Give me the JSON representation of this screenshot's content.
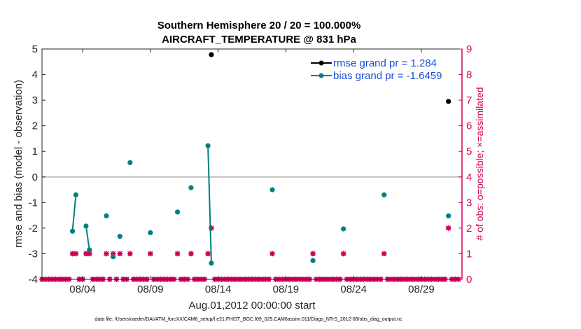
{
  "chart_data": {
    "type": "line",
    "title": "Southern Hemisphere 20 / 20 = 100.000%",
    "subtitle": "AIRCRAFT_TEMPERATURE @ 831 hPa",
    "xlabel": "Aug.01,2012 00:00:00 start",
    "ylabel": "rmse and bias (model - observation)",
    "y2label": "# of obs: o=possible; ×=assimilated",
    "xlim": [
      1,
      32
    ],
    "ylim": [
      -4,
      5
    ],
    "y2lim": [
      0,
      9
    ],
    "x_ticks": [
      4,
      9,
      14,
      19,
      24,
      29
    ],
    "x_tick_labels": [
      "08/04",
      "08/09",
      "08/14",
      "08/19",
      "08/24",
      "08/29"
    ],
    "y_ticks": [
      -4,
      -3,
      -2,
      -1,
      0,
      1,
      2,
      3,
      4,
      5
    ],
    "y_tick_labels": [
      "-4",
      "-3",
      "-2",
      "-1",
      "0",
      "1",
      "2",
      "3",
      "4",
      "5"
    ],
    "y2_ticks": [
      0,
      1,
      2,
      3,
      4,
      5,
      6,
      7,
      8,
      9
    ],
    "y2_tick_labels": [
      "0",
      "1",
      "2",
      "3",
      "4",
      "5",
      "6",
      "7",
      "8",
      "9"
    ],
    "zero_line": 0,
    "legend_position": "top-right",
    "colors": {
      "rmse": "#000000",
      "bias": "#008080",
      "obs": "#d6005c",
      "zero": "#bfbfbf"
    },
    "series": [
      {
        "name": "rmse grand pr = 1.284",
        "segments": [
          [
            [
              13.5,
              4.78
            ]
          ],
          [
            [
              31.0,
              2.95
            ]
          ]
        ]
      },
      {
        "name": "bias grand pr = -1.6459",
        "segments": [
          [
            [
              3.25,
              -2.12
            ],
            [
              3.5,
              -0.7
            ]
          ],
          [
            [
              4.25,
              -1.92
            ],
            [
              4.5,
              -2.85
            ]
          ],
          [
            [
              5.75,
              -1.52
            ]
          ],
          [
            [
              6.25,
              -3.12
            ]
          ],
          [
            [
              6.75,
              -2.32
            ]
          ],
          [
            [
              7.5,
              0.56
            ]
          ],
          [
            [
              9.0,
              -2.18
            ]
          ],
          [
            [
              11.0,
              -1.37
            ]
          ],
          [
            [
              12.0,
              -0.42
            ]
          ],
          [
            [
              13.25,
              1.22
            ],
            [
              13.5,
              -3.37
            ]
          ],
          [
            [
              18.0,
              -0.5
            ]
          ],
          [
            [
              21.0,
              -3.27
            ]
          ],
          [
            [
              23.25,
              -2.03
            ]
          ],
          [
            [
              26.25,
              -0.7
            ]
          ],
          [
            [
              31.0,
              -1.52
            ]
          ]
        ]
      }
    ],
    "obs_possible": {
      "x": [
        1.0,
        1.25,
        1.5,
        1.75,
        2.0,
        2.25,
        2.5,
        2.75,
        3.0,
        3.25,
        3.5,
        3.75,
        4.0,
        4.25,
        4.5,
        4.75,
        5.0,
        5.25,
        5.5,
        5.75,
        6.0,
        6.25,
        6.5,
        6.75,
        7.0,
        7.25,
        7.5,
        7.75,
        8.0,
        8.25,
        8.5,
        8.75,
        9.0,
        9.25,
        9.5,
        9.75,
        10.0,
        10.25,
        10.5,
        10.75,
        11.0,
        11.25,
        11.5,
        11.75,
        12.0,
        12.25,
        12.5,
        12.75,
        13.0,
        13.25,
        13.5,
        13.75,
        14.0,
        14.25,
        14.5,
        14.75,
        15.0,
        15.25,
        15.5,
        15.75,
        16.0,
        16.25,
        16.5,
        16.75,
        17.0,
        17.25,
        17.5,
        17.75,
        18.0,
        18.25,
        18.5,
        18.75,
        19.0,
        19.25,
        19.5,
        19.75,
        20.0,
        20.25,
        20.5,
        20.75,
        21.0,
        21.25,
        21.5,
        21.75,
        22.0,
        22.25,
        22.5,
        22.75,
        23.0,
        23.25,
        23.5,
        23.75,
        24.0,
        24.25,
        24.5,
        24.75,
        25.0,
        25.25,
        25.5,
        25.75,
        26.0,
        26.25,
        26.5,
        26.75,
        27.0,
        27.25,
        27.5,
        27.75,
        28.0,
        28.25,
        28.5,
        28.75,
        29.0,
        29.25,
        29.5,
        29.75,
        30.0,
        30.25,
        30.5,
        30.75,
        31.0,
        31.25,
        31.5,
        31.75
      ],
      "y": [
        0,
        0,
        0,
        0,
        0,
        0,
        0,
        0,
        0,
        1,
        1,
        0,
        0,
        1,
        1,
        0,
        0,
        0,
        0,
        1,
        0,
        1,
        0,
        1,
        0,
        0,
        1,
        0,
        0,
        0,
        0,
        0,
        1,
        0,
        0,
        0,
        0,
        0,
        0,
        0,
        1,
        0,
        0,
        0,
        1,
        0,
        0,
        0,
        0,
        1,
        2,
        0,
        0,
        0,
        0,
        0,
        0,
        0,
        0,
        0,
        0,
        0,
        0,
        0,
        0,
        0,
        0,
        0,
        1,
        0,
        0,
        0,
        0,
        0,
        0,
        0,
        0,
        0,
        0,
        0,
        1,
        0,
        0,
        0,
        0,
        0,
        0,
        0,
        0,
        1,
        0,
        0,
        0,
        0,
        0,
        0,
        0,
        0,
        0,
        0,
        0,
        1,
        0,
        0,
        0,
        0,
        0,
        0,
        0,
        0,
        0,
        0,
        0,
        0,
        0,
        0,
        0,
        0,
        0,
        0,
        2,
        0,
        0,
        0
      ]
    }
  },
  "footer_text": "data file: /Users/raeder/DAI/ATM_forcXX/CAM6_setup/f.e21.FHIST_BGC.f09_025.CAM6assim.011/Diags_NTrS_2012-08/obs_diag_output.nc"
}
